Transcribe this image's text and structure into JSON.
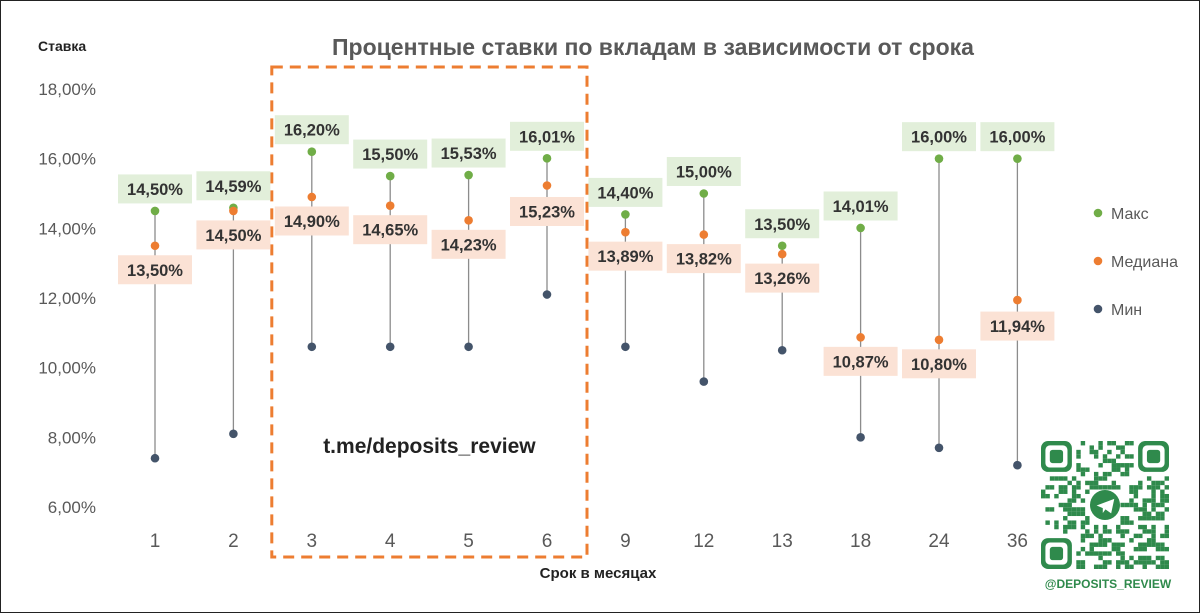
{
  "chart_data": {
    "type": "scatter",
    "title": "Процентные ставки по вкладам в зависимости от срока",
    "xlabel": "Срок в месяцах",
    "ylabel": "Ставка",
    "ylim": [
      6,
      18
    ],
    "y_ticks": [
      "6,00%",
      "8,00%",
      "10,00%",
      "12,00%",
      "14,00%",
      "16,00%",
      "18,00%"
    ],
    "categories": [
      "1",
      "2",
      "3",
      "4",
      "5",
      "6",
      "9",
      "12",
      "13",
      "18",
      "24",
      "36"
    ],
    "grid": false,
    "legend_position": "right",
    "series": [
      {
        "name": "Макс",
        "color": "#70ad47",
        "values": [
          14.5,
          14.59,
          16.2,
          15.5,
          15.53,
          16.01,
          14.4,
          15.0,
          13.5,
          14.01,
          16.0,
          16.0
        ],
        "labels": [
          "14,50%",
          "14,59%",
          "16,20%",
          "15,50%",
          "15,53%",
          "16,01%",
          "14,40%",
          "15,00%",
          "13,50%",
          "14,01%",
          "16,00%",
          "16,00%"
        ]
      },
      {
        "name": "Медиана",
        "color": "#ed7d31",
        "values": [
          13.5,
          14.5,
          14.9,
          14.65,
          14.23,
          15.23,
          13.89,
          13.82,
          13.26,
          10.87,
          10.8,
          11.94
        ],
        "labels": [
          "13,50%",
          "14,50%",
          "14,90%",
          "14,65%",
          "14,23%",
          "15,23%",
          "13,89%",
          "13,82%",
          "13,26%",
          "10,87%",
          "10,80%",
          "11,94%"
        ]
      },
      {
        "name": "Мин",
        "color": "#44546a",
        "values": [
          7.4,
          8.1,
          10.6,
          10.6,
          10.6,
          12.1,
          10.6,
          9.6,
          10.5,
          8.0,
          7.7,
          7.2
        ]
      }
    ],
    "highlight": {
      "from_category": "3",
      "to_category": "6",
      "color": "#ed7d31",
      "text": "t.me/deposits_review"
    }
  },
  "watermark": {
    "caption": "@DEPOSITS_REVIEW",
    "icon": "qr-code-icon"
  }
}
